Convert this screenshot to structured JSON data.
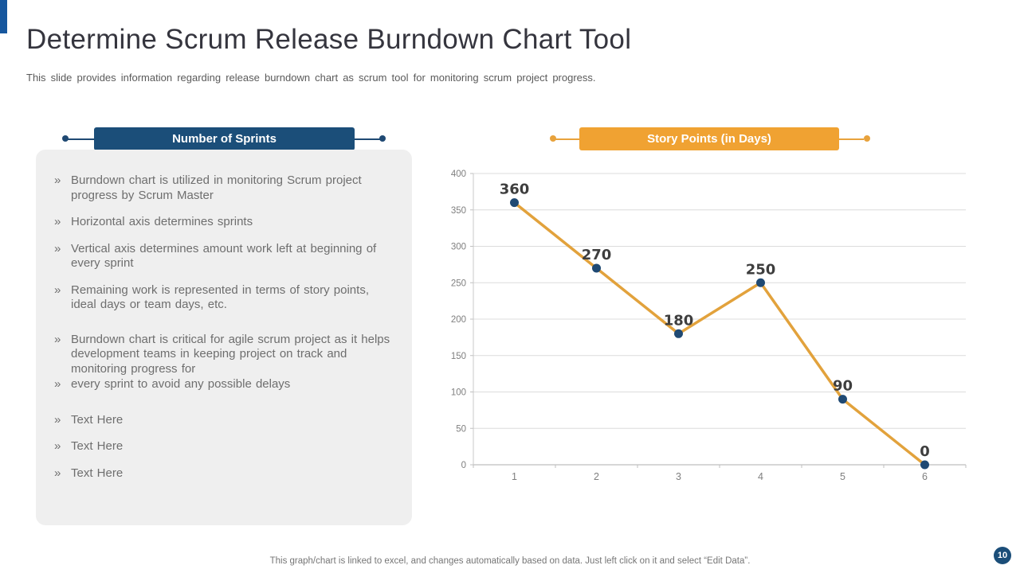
{
  "slide": {
    "title": "Determine Scrum Release Burndown Chart Tool",
    "subtitle": "This slide provides information regarding release burndown chart as scrum tool for monitoring scrum project progress.",
    "footer_note": "This graph/chart is linked to excel, and changes automatically based on data. Just left click on it and select “Edit Data”.",
    "page_number": "10"
  },
  "left_section": {
    "header": "Number of Sprints",
    "header_color": "#1B4E79",
    "bullet_marker": "»",
    "bullets": [
      "Burndown chart is utilized in monitoring Scrum project progress by Scrum Master",
      "Horizontal axis determines sprints",
      "Vertical axis determines amount work left at beginning of every sprint",
      "Remaining work is represented in terms of story points, ideal days or team days, etc.",
      "Burndown chart is critical for agile scrum project as it helps development teams in keeping project on track and monitoring progress for",
      "every sprint to avoid any possible delays",
      "Text Here",
      "Text Here",
      "Text Here"
    ]
  },
  "right_section": {
    "header": "Story Points (in Days)",
    "header_color": "#F0A232"
  },
  "chart_data": {
    "type": "line",
    "title": "",
    "xlabel": "",
    "ylabel": "",
    "categories": [
      "1",
      "2",
      "3",
      "4",
      "5",
      "6"
    ],
    "series": [
      {
        "name": "Story Points",
        "values": [
          360,
          270,
          180,
          250,
          90,
          0
        ]
      }
    ],
    "ylim": [
      0,
      400
    ],
    "yticks": [
      0,
      50,
      100,
      150,
      200,
      250,
      300,
      350,
      400
    ],
    "grid": true,
    "legend_position": "none",
    "line_color": "#E2A23C",
    "marker_color": "#1F4973",
    "data_labels_shown": true
  }
}
